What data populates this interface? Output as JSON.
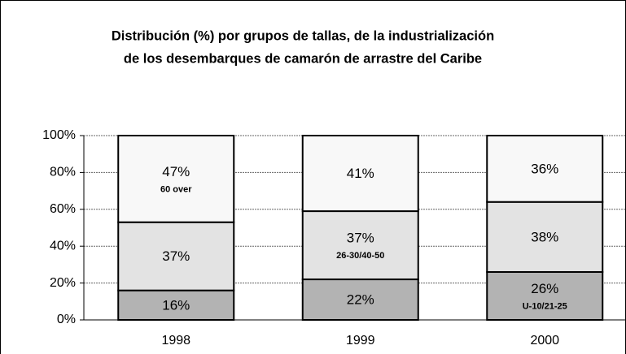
{
  "chart_data": {
    "type": "stacked_bar",
    "title": [
      "Distribución (%) por grupos de tallas, de la industrialización",
      "de los desembarques de camarón de arrastre del Caribe"
    ],
    "categories": [
      "1998",
      "1999",
      "2000"
    ],
    "series": [
      {
        "name": "U-10/21-25",
        "color": "#b3b3b3",
        "values": [
          16,
          22,
          26
        ],
        "value_labels": [
          "16%",
          "22%",
          "26%"
        ]
      },
      {
        "name": "26-30/40-50",
        "color": "#e3e3e3",
        "values": [
          37,
          37,
          38
        ],
        "value_labels": [
          "37%",
          "37%",
          "38%"
        ]
      },
      {
        "name": "60 over",
        "color": "#f8f8f8",
        "values": [
          47,
          41,
          36
        ],
        "value_labels": [
          "47%",
          "41%",
          "36%"
        ]
      }
    ],
    "ylim": [
      0,
      100
    ],
    "yticks": [
      {
        "value": 0,
        "label": "0%"
      },
      {
        "value": 20,
        "label": "20%"
      },
      {
        "value": 40,
        "label": "40%"
      },
      {
        "value": 60,
        "label": "60%"
      },
      {
        "value": 80,
        "label": "80%"
      },
      {
        "value": 100,
        "label": "100%"
      }
    ],
    "grid": true
  }
}
